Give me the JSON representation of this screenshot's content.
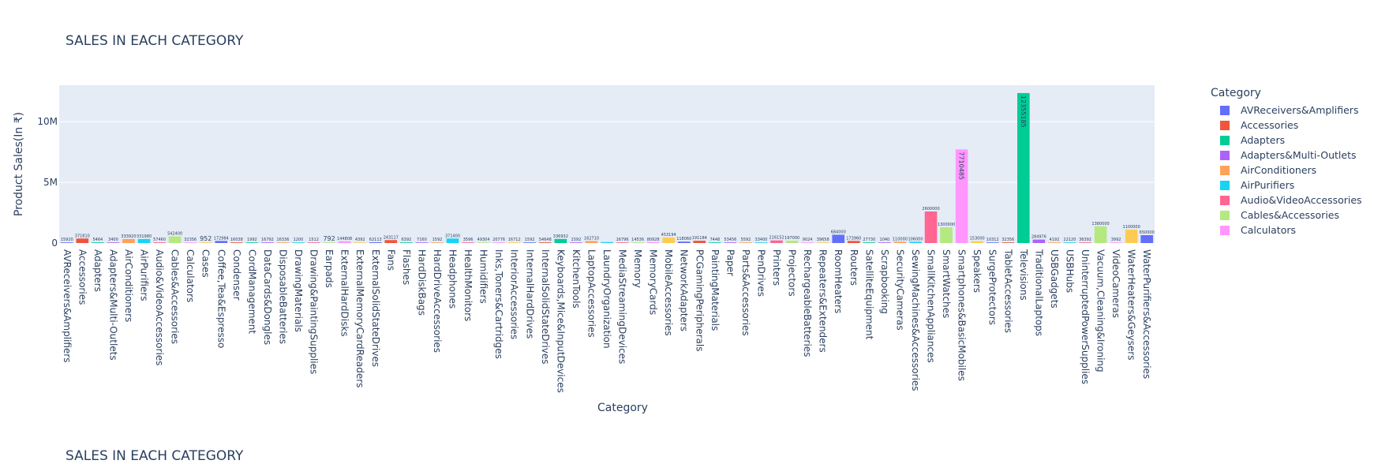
{
  "title": "SALES IN EACH CATEGORY",
  "title_repeat": "SALES IN EACH CATEGORY",
  "legend": {
    "title": "Category",
    "items": [
      {
        "label": "AVReceivers&Amplifiers",
        "color": "#636efa"
      },
      {
        "label": "Accessories",
        "color": "#EF553B"
      },
      {
        "label": "Adapters",
        "color": "#00cc96"
      },
      {
        "label": "Adapters&Multi-Outlets",
        "color": "#ab63fa"
      },
      {
        "label": "AirConditioners",
        "color": "#FFA15A"
      },
      {
        "label": "AirPurifiers",
        "color": "#19d3f3"
      },
      {
        "label": "Audio&VideoAccessories",
        "color": "#FF6692"
      },
      {
        "label": "Cables&Accessories",
        "color": "#B6E880"
      },
      {
        "label": "Calculators",
        "color": "#FF97FF"
      }
    ]
  },
  "chart_data": {
    "type": "bar",
    "title": "SALES IN EACH CATEGORY",
    "xlabel": "Category",
    "ylabel": "Product Sales(In ₹)",
    "ylim": [
      0,
      13000000
    ],
    "yticks": [
      0,
      5000000,
      10000000
    ],
    "ytick_labels": [
      "0",
      "5M",
      "10M"
    ],
    "grid": true,
    "legend_position": "right",
    "categories": [
      "AVReceivers&Amplifiers",
      "Accessories",
      "Adapters",
      "Adapters&Multi-Outlets",
      "AirConditioners",
      "AirPurifiers",
      "Audio&VideoAccessories",
      "Cables&Accessories",
      "Calculators",
      "Cases",
      "Coffee,Tea&Espresso",
      "Condenser",
      "CordManagement",
      "DataCards&Dongles",
      "DisposableBatteries",
      "DrawingMaterials",
      "Drawing&PaintingSupplies",
      "Earpads",
      "ExternalHardDisks",
      "ExternalMemoryCardReaders",
      "ExternalSolidStateDrives",
      "Fans",
      "Flashes",
      "HardDiskBags",
      "HardDriveAccessories",
      "Headphones",
      "HealthMonitors",
      "Humidifiers",
      "Inks,Toners&Cartridges",
      "InteriorAccessories",
      "InternalHardDrives",
      "InternalSolidStateDrives",
      "Keyboards,Mice&InputDevices",
      "KitchenTools",
      "LaptopAccessories",
      "LaundryOrganization",
      "MediaStreamingDevices",
      "Memory",
      "MemoryCards",
      "MobileAccessories",
      "NetworkAdapters",
      "PCGamingPeripherals",
      "PaintingMaterials",
      "Paper",
      "Parts&Accessories",
      "PenDrives",
      "Printers",
      "Projectors",
      "RechargeableBatteries",
      "Repeaters&Extenders",
      "RoomHeaters",
      "Routers",
      "SatelliteEquipment",
      "Scrapbooking",
      "SecurityCameras",
      "SewingMachines&Accessories",
      "SmallKitchenAppliances",
      "SmartWatches",
      "Smartphones&BasicMobiles",
      "Speakers",
      "SurgeProtectors",
      "TabletAccessories",
      "Televisions",
      "TraditionalLaptops",
      "USBGadgets",
      "USBHubs",
      "UninterruptedPowerSupplies",
      "Vacuum,Cleaning&Ironing",
      "VideoCameras",
      "WaterHeaters&Geysers",
      "WaterPurifiers&Accessories"
    ],
    "values": [
      15920,
      371810,
      5464,
      3400,
      333920,
      331980,
      57460,
      542400,
      32356,
      952,
      172984,
      16038,
      1992,
      16792,
      16336,
      1200,
      1512,
      792,
      144808,
      4392,
      62113,
      243117,
      6392,
      7160,
      1592,
      371400,
      3596,
      49304,
      20776,
      16712,
      1592,
      54648,
      336932,
      1592,
      162710,
      80000,
      16796,
      14536,
      80928,
      453194,
      118060,
      191184,
      7448,
      53456,
      5592,
      33400,
      216152,
      197000,
      9024,
      39658,
      684000,
      173960,
      27730,
      1040,
      110000,
      106000,
      2600000,
      1300000,
      7710485,
      153000,
      10312,
      32356,
      12355185,
      284976,
      4192,
      22120,
      36392,
      1380000,
      3992,
      1100000,
      650000
    ],
    "value_labels": [
      "15920",
      "371810",
      "5464",
      "3400",
      "333920",
      "331980",
      "57460",
      "542400",
      "32356",
      "952",
      "172984",
      "16038",
      "1992",
      "16792",
      "16336",
      "1200",
      "1512",
      "792",
      "144808",
      "4392",
      "62113",
      "243117",
      "6392",
      "7160",
      "1592",
      "371400",
      "3596",
      "49304",
      "20776",
      "16712",
      "1592",
      "54648",
      "336932",
      "1592",
      "162710",
      "",
      "16796",
      "14536",
      "80928",
      "453194",
      "118060",
      "191184",
      "7448",
      "53456",
      "5592",
      "33400",
      "216152",
      "197000",
      "9024",
      "39658",
      "684000",
      "173960",
      "27730",
      "1040",
      "110000",
      "106000",
      "2600000",
      "1300000",
      "7710485",
      "153000",
      "10312",
      "32356",
      "12355185",
      "284976",
      "4192",
      "22120",
      "36392",
      "1380000",
      "3992",
      "1100000",
      "650000"
    ],
    "bar_colors": [
      "#636efa",
      "#EF553B",
      "#00cc96",
      "#ab63fa",
      "#FFA15A",
      "#19d3f3",
      "#FF6692",
      "#B6E880",
      "#FF97FF",
      "#FECB52"
    ]
  }
}
